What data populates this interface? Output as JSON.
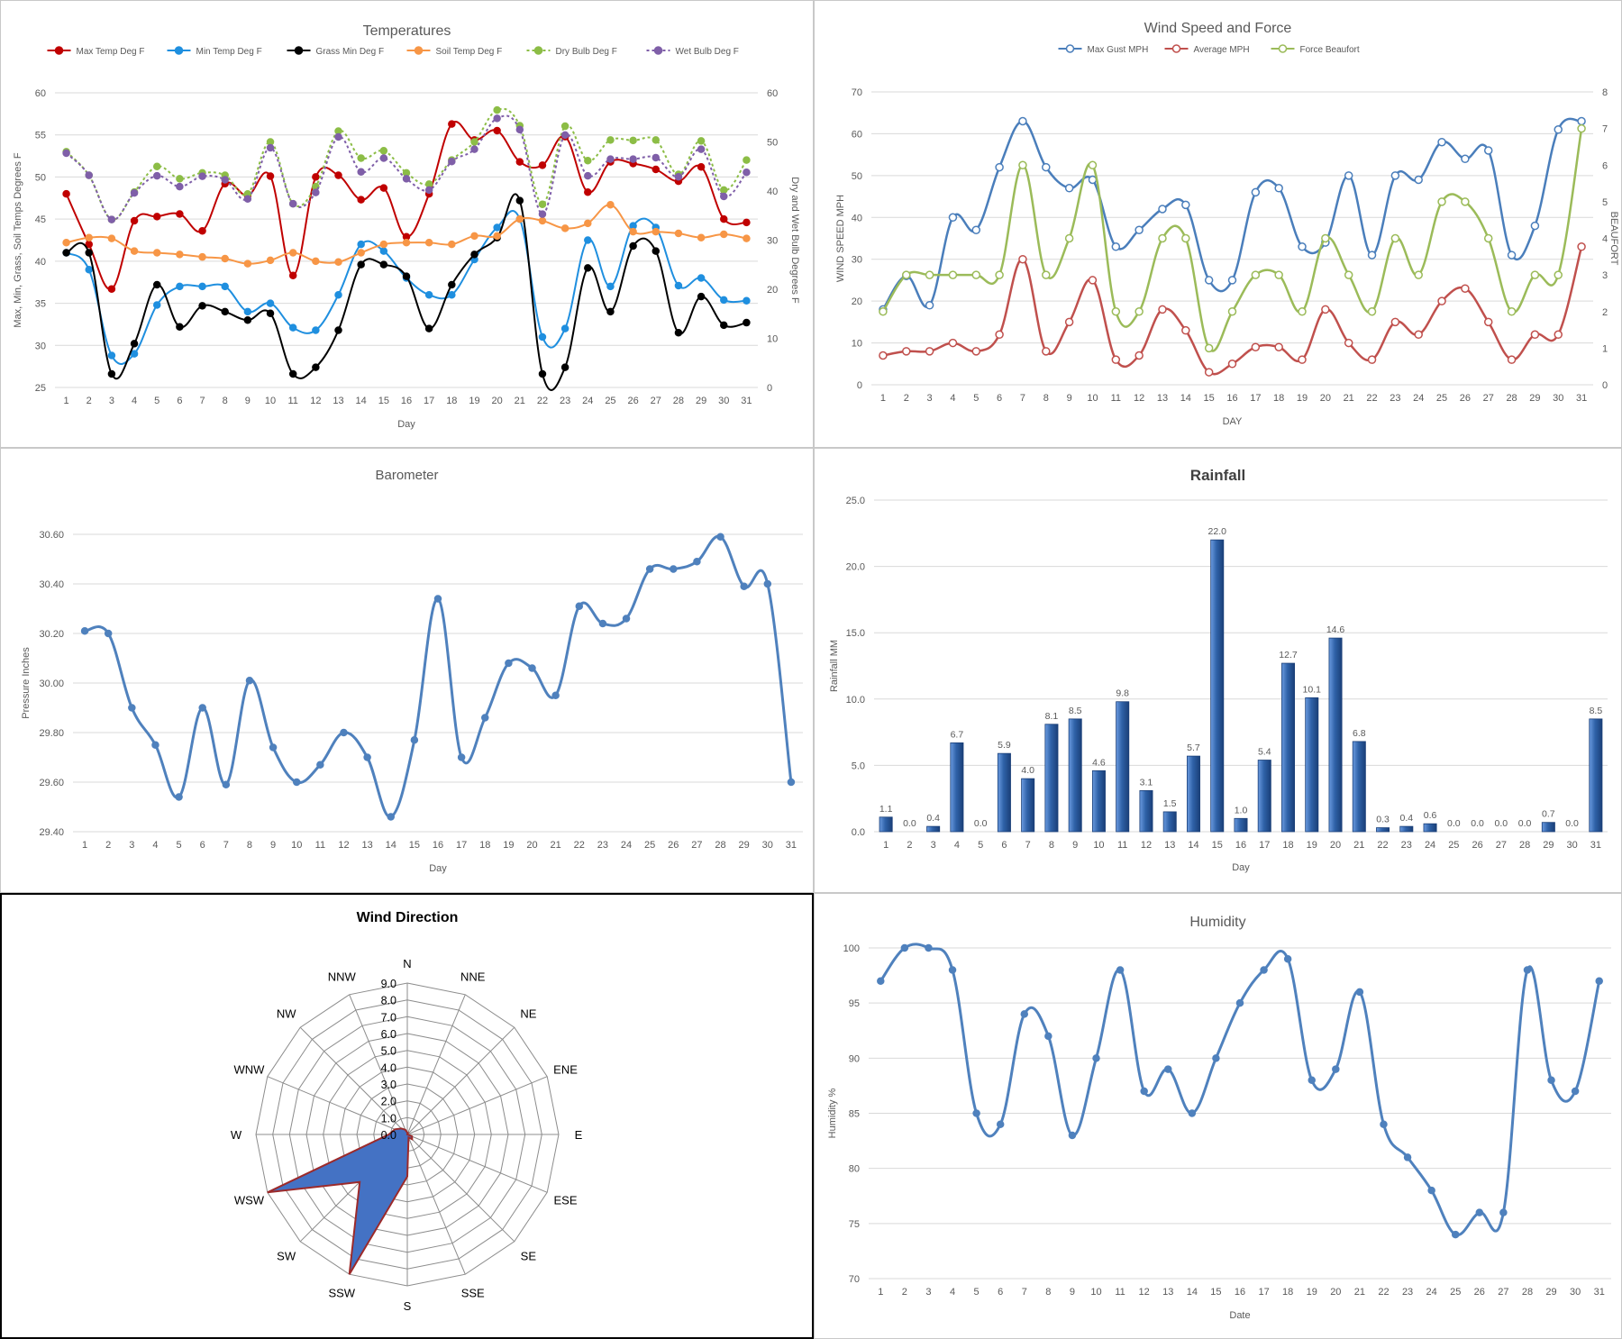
{
  "colors": {
    "max_temp": "#c00000",
    "min_temp": "#1f8fdf",
    "grass_min": "#000000",
    "soil_temp": "#f79646",
    "dry_bulb": "#8cbd46",
    "wet_bulb": "#7f5fa8",
    "gust": "#4a7ebb",
    "avg": "#c0504d",
    "beaufort": "#9bbb59",
    "baro": "#4f81bd",
    "rain": "#2f62a8",
    "rose_fill": "#4472c4",
    "rose_edge": "#9c2a2a",
    "humidity": "#4f81bd",
    "grid": "#d9d9d9",
    "axis_text": "#595959"
  },
  "chart_data": [
    {
      "type": "line",
      "title": "Temperatures",
      "xlabel": "Day",
      "ylabel": "Max, Min, Grass, Soil Temps Degrees F",
      "y2label": "Dry and Wet Bulb Degrees F",
      "ylim": [
        25,
        60
      ],
      "y_ticks": [
        "25",
        "30",
        "35",
        "40",
        "45",
        "50",
        "55",
        "60"
      ],
      "y2lim": [
        0,
        60
      ],
      "y2_ticks": [
        "0",
        "10",
        "20",
        "30",
        "40",
        "50",
        "60"
      ],
      "legend_position": "top",
      "x": [
        "1",
        "2",
        "3",
        "4",
        "5",
        "6",
        "7",
        "8",
        "9",
        "10",
        "11",
        "12",
        "13",
        "14",
        "15",
        "16",
        "17",
        "18",
        "19",
        "20",
        "21",
        "22",
        "23",
        "24",
        "25",
        "26",
        "27",
        "28",
        "29",
        "30",
        "31"
      ],
      "series": [
        {
          "name": "Max Temp Deg F",
          "axis": "left",
          "values": [
            48.0,
            42.0,
            36.7,
            44.8,
            45.3,
            45.6,
            43.6,
            49.2,
            47.8,
            50.1,
            38.3,
            50.0,
            50.2,
            47.3,
            48.7,
            42.9,
            48.0,
            56.3,
            54.4,
            55.5,
            51.8,
            51.4,
            54.8,
            48.2,
            51.8,
            51.6,
            50.9,
            49.5,
            51.2,
            45.0,
            44.6
          ]
        },
        {
          "name": "Min Temp Deg F",
          "axis": "left",
          "values": [
            41.0,
            39.0,
            28.8,
            29.0,
            34.8,
            37.0,
            37.0,
            37.0,
            34.0,
            35.0,
            32.1,
            31.8,
            36.0,
            42.0,
            41.2,
            38.0,
            36.0,
            36.0,
            40.2,
            44.0,
            45.0,
            31.0,
            32.0,
            42.5,
            37.0,
            44.2,
            44.0,
            37.1,
            38.0,
            35.4,
            35.3
          ]
        },
        {
          "name": "Grass Min Deg F",
          "axis": "left",
          "values": [
            41.0,
            41.0,
            26.6,
            30.2,
            37.2,
            32.2,
            34.7,
            34.0,
            33.0,
            33.8,
            26.6,
            27.4,
            31.8,
            39.6,
            39.6,
            38.2,
            32.0,
            37.2,
            40.8,
            42.8,
            47.2,
            26.6,
            27.4,
            39.2,
            34.0,
            41.8,
            41.2,
            31.5,
            35.8,
            32.4,
            32.7
          ]
        },
        {
          "name": "Soil Temp Deg F",
          "axis": "left",
          "values": [
            42.2,
            42.8,
            42.7,
            41.2,
            41.0,
            40.8,
            40.5,
            40.3,
            39.7,
            40.1,
            41.0,
            40.0,
            39.9,
            41.0,
            42.0,
            42.2,
            42.2,
            42.0,
            43.0,
            43.0,
            45.0,
            44.8,
            43.9,
            44.5,
            46.7,
            43.5,
            43.5,
            43.3,
            42.8,
            43.2,
            42.7
          ]
        },
        {
          "name": "Dry Bulb Deg F",
          "axis": "right",
          "dashed": true,
          "values": [
            48.0,
            43.2,
            34.2,
            39.8,
            45.0,
            42.5,
            43.7,
            43.2,
            39.4,
            50.0,
            37.4,
            40.9,
            52.2,
            46.7,
            48.2,
            43.7,
            41.4,
            46.3,
            50.0,
            56.5,
            53.3,
            37.3,
            53.2,
            46.2,
            50.4,
            50.3,
            50.4,
            43.4,
            50.2,
            40.2,
            46.3
          ]
        },
        {
          "name": "Wet Bulb Deg F",
          "axis": "right",
          "dashed": true,
          "values": [
            47.7,
            43.2,
            34.2,
            39.6,
            43.1,
            40.9,
            43.0,
            42.3,
            38.4,
            48.8,
            37.4,
            39.7,
            51.0,
            43.9,
            46.7,
            42.5,
            40.2,
            46.0,
            48.5,
            54.8,
            52.5,
            35.3,
            51.4,
            43.1,
            46.5,
            46.5,
            46.8,
            42.9,
            48.5,
            38.9,
            43.8
          ]
        }
      ]
    },
    {
      "type": "line",
      "title": "Wind Speed and Force",
      "xlabel": "DAY",
      "ylabel": "WIND SPEED MPH",
      "y2label": "BEAUFORT",
      "ylim": [
        0,
        70
      ],
      "y_ticks": [
        "0",
        "10",
        "20",
        "30",
        "40",
        "50",
        "60",
        "70"
      ],
      "y2lim": [
        0,
        8
      ],
      "y2_ticks": [
        "0",
        "1",
        "2",
        "3",
        "4",
        "5",
        "6",
        "7",
        "8"
      ],
      "legend_position": "top",
      "x": [
        "1",
        "2",
        "3",
        "4",
        "5",
        "6",
        "7",
        "8",
        "9",
        "10",
        "11",
        "12",
        "13",
        "14",
        "15",
        "16",
        "17",
        "18",
        "19",
        "20",
        "21",
        "22",
        "23",
        "24",
        "25",
        "26",
        "27",
        "28",
        "29",
        "30",
        "31"
      ],
      "series": [
        {
          "name": "Max Gust MPH",
          "axis": "left",
          "values": [
            18,
            26,
            19,
            40,
            37,
            52,
            63,
            52,
            47,
            49,
            33,
            37,
            42,
            43,
            25,
            25,
            46,
            47,
            33,
            34,
            50,
            31,
            50,
            49,
            58,
            54,
            56,
            31,
            38,
            61,
            63
          ]
        },
        {
          "name": "Average MPH",
          "axis": "left",
          "values": [
            7,
            8,
            8,
            10,
            8,
            12,
            30,
            8,
            15,
            25,
            6,
            7,
            18,
            13,
            3,
            5,
            9,
            9,
            6,
            18,
            10,
            6,
            15,
            12,
            20,
            23,
            15,
            6,
            12,
            12,
            33
          ]
        },
        {
          "name": "Force Beaufort",
          "axis": "right",
          "values": [
            2,
            3,
            3,
            3,
            3,
            3,
            6,
            3,
            4,
            6,
            2,
            2,
            4,
            4,
            1,
            2,
            3,
            3,
            2,
            4,
            3,
            2,
            4,
            3,
            5,
            5,
            4,
            2,
            3,
            3,
            7
          ]
        }
      ]
    },
    {
      "type": "line",
      "title": "Barometer",
      "xlabel": "Day",
      "ylabel": "Pressure Inches",
      "ylim": [
        29.4,
        30.6
      ],
      "y_ticks": [
        "29.40",
        "29.60",
        "29.80",
        "30.00",
        "30.20",
        "30.40",
        "30.60"
      ],
      "x": [
        "1",
        "2",
        "3",
        "4",
        "5",
        "6",
        "7",
        "8",
        "9",
        "10",
        "11",
        "12",
        "13",
        "14",
        "15",
        "16",
        "17",
        "18",
        "19",
        "20",
        "21",
        "22",
        "23",
        "24",
        "25",
        "26",
        "27",
        "28",
        "29",
        "30",
        "31"
      ],
      "series": [
        {
          "values": [
            30.21,
            30.2,
            29.9,
            29.75,
            29.54,
            29.9,
            29.59,
            30.01,
            29.74,
            29.6,
            29.67,
            29.8,
            29.7,
            29.46,
            29.77,
            30.34,
            29.7,
            29.86,
            30.08,
            30.06,
            29.95,
            30.31,
            30.24,
            30.26,
            30.46,
            30.46,
            30.49,
            30.59,
            30.39,
            30.4,
            29.6
          ]
        }
      ]
    },
    {
      "type": "bar",
      "title": "Rainfall",
      "xlabel": "Day",
      "ylabel": "Rainfall MM",
      "ylim": [
        0,
        25
      ],
      "y_ticks": [
        "0.0",
        "5.0",
        "10.0",
        "15.0",
        "20.0",
        "25.0"
      ],
      "categories": [
        "1",
        "2",
        "3",
        "4",
        "5",
        "6",
        "7",
        "8",
        "9",
        "10",
        "11",
        "12",
        "13",
        "14",
        "15",
        "16",
        "17",
        "18",
        "19",
        "20",
        "21",
        "22",
        "23",
        "24",
        "25",
        "26",
        "27",
        "28",
        "29",
        "30",
        "31"
      ],
      "values": [
        1.1,
        0.0,
        0.4,
        6.7,
        0.0,
        5.9,
        4.0,
        8.1,
        8.5,
        4.6,
        9.8,
        3.1,
        1.5,
        5.7,
        22.0,
        1.0,
        5.4,
        12.7,
        10.1,
        14.6,
        6.8,
        0.3,
        0.4,
        0.6,
        0.0,
        0.0,
        0.0,
        0.0,
        0.7,
        0.0,
        8.5
      ],
      "labels": [
        "1.1",
        "0.0",
        "0.4",
        "6.7",
        "0.0",
        "5.9",
        "4.0",
        "8.1",
        "8.5",
        "4.6",
        "9.8",
        "3.1",
        "1.5",
        "5.7",
        "22.0",
        "1.0",
        "5.4",
        "12.7",
        "10.1",
        "14.6",
        "6.8",
        "0.3",
        "0.4",
        "0.6",
        "0.0",
        "0.0",
        "0.0",
        "0.0",
        "0.7",
        "0.0",
        "8.5"
      ]
    },
    {
      "type": "radar",
      "title": "Wind Direction",
      "rlim": [
        0,
        9
      ],
      "r_ticks": [
        "0.0",
        "1.0",
        "2.0",
        "3.0",
        "4.0",
        "5.0",
        "6.0",
        "7.0",
        "8.0",
        "9.0"
      ],
      "categories": [
        "N",
        "NNE",
        "NE",
        "ENE",
        "E",
        "ESE",
        "SE",
        "SSE",
        "S",
        "SSW",
        "SW",
        "WSW",
        "W",
        "WNW",
        "NW",
        "NNW"
      ],
      "values": [
        0.1,
        0.1,
        0.0,
        0.0,
        0.0,
        0.3,
        0.4,
        0.2,
        2.5,
        9.0,
        4.0,
        9.0,
        1.1,
        0.8,
        0.5,
        0.3
      ]
    },
    {
      "type": "line",
      "title": "Humidity",
      "xlabel": "Date",
      "ylabel": "Humidity %",
      "ylim": [
        70,
        100
      ],
      "y_ticks": [
        "70",
        "75",
        "80",
        "85",
        "90",
        "95",
        "100"
      ],
      "x": [
        "1",
        "2",
        "3",
        "4",
        "5",
        "6",
        "7",
        "8",
        "9",
        "10",
        "11",
        "12",
        "13",
        "14",
        "15",
        "16",
        "17",
        "18",
        "19",
        "20",
        "21",
        "22",
        "23",
        "24",
        "25",
        "26",
        "27",
        "28",
        "29",
        "30",
        "31"
      ],
      "series": [
        {
          "values": [
            97,
            100,
            100,
            98,
            85,
            84,
            94,
            92,
            83,
            90,
            98,
            87,
            89,
            85,
            90,
            95,
            98,
            99,
            88,
            89,
            96,
            84,
            81,
            78,
            74,
            76,
            76,
            98,
            88,
            87,
            97
          ]
        }
      ]
    }
  ]
}
